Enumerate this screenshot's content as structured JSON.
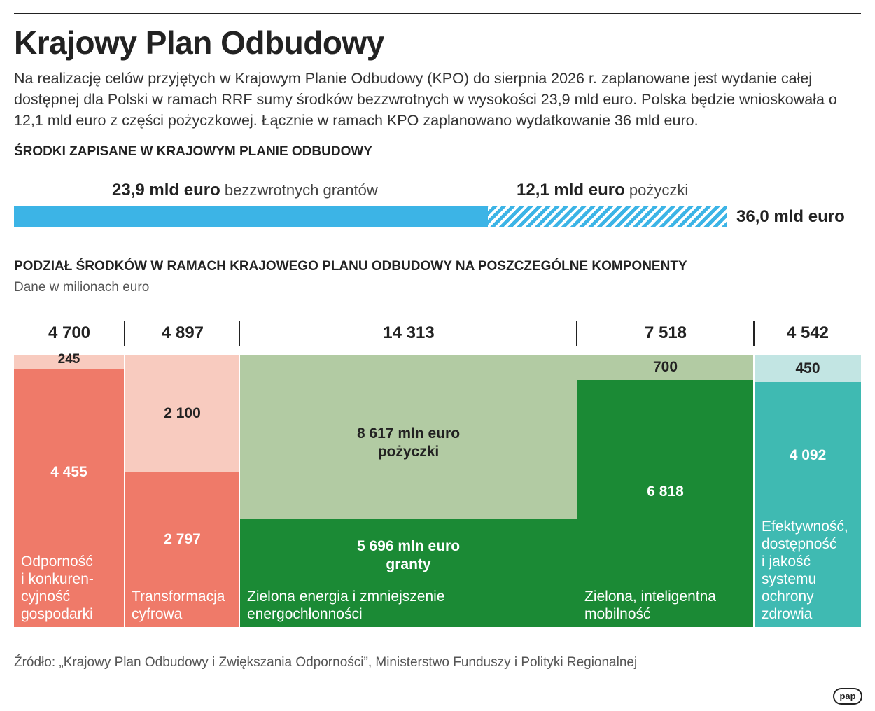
{
  "header": {
    "title": "Krajowy Plan Odbudowy",
    "intro": "Na realizację celów przyjętych w Krajowym Planie Odbudowy (KPO) do sierpnia 2026 r. zaplanowane jest wydanie całej dostępnej dla Polski w ramach RRF sumy środków bezzwrotnych w wysokości 23,9 mld euro. Polska będzie wnioskowała o 12,1 mld euro z części pożyczkowej. Łącznie w ramach KPO zaplanowano wydatkowanie 36 mld euro."
  },
  "funds": {
    "heading": "ŚRODKI ZAPISANE W KRAJOWYM PLANIE ODBUDOWY",
    "grants_value": "23,9 mld euro",
    "grants_text": "bezzwrotnych grantów",
    "loans_value": "12,1 mld euro",
    "loans_text": "pożyczki",
    "total": "36,0 mld euro"
  },
  "colors": {
    "grant_bar": "#3cb4e6",
    "c1_grant": "#ef7a69",
    "c1_loan": "#f8cbbf",
    "c2_grant": "#ef7a69",
    "c2_loan": "#f8cbbf",
    "c3_grant": "#1b8a35",
    "c3_loan": "#b2cba3",
    "c4_grant": "#1b8a35",
    "c4_loan": "#b2cba3",
    "c5_grant": "#3fbab2",
    "c5_loan": "#c2e5e3"
  },
  "chart_data": [
    {
      "type": "bar",
      "title": "ŚRODKI ZAPISANE W KRAJOWYM PLANIE ODBUDOWY",
      "unit": "mld euro",
      "orientation": "horizontal-stacked",
      "series": [
        {
          "name": "bezzwrotnych grantów",
          "values": [
            23.9
          ]
        },
        {
          "name": "pożyczki",
          "values": [
            12.1
          ]
        }
      ],
      "total": 36.0
    },
    {
      "type": "bar",
      "orientation": "stacked-width-proportional",
      "title": "PODZIAŁ ŚRODKÓW W RAMACH KRAJOWEGO PLANU ODBUDOWY NA POSZCZEGÓLNE KOMPONENTY",
      "subtitle": "Dane w milionach euro",
      "categories": [
        "Odporność i konkurencyjność gospodarki",
        "Transformacja cyfrowa",
        "Zielona energia i zmniejszenie energochłonności",
        "Zielona, inteligentna mobilność",
        "Efektywność, dostępność i jakość systemu ochrony zdrowia"
      ],
      "totals": [
        4700,
        4897,
        14313,
        7518,
        4542
      ],
      "totals_text": [
        "4 700",
        "4 897",
        "14 313",
        "7 518",
        "4 542"
      ],
      "series": [
        {
          "name": "granty",
          "values": [
            4455,
            2797,
            5696,
            6818,
            4092
          ],
          "labels": [
            "4 455",
            "2 797",
            "5 696 mln euro granty",
            "6 818",
            "4 092"
          ]
        },
        {
          "name": "pożyczki",
          "values": [
            245,
            2100,
            8617,
            700,
            450
          ],
          "labels": [
            "245",
            "2 100",
            "8 617 mln euro pożyczki",
            "700",
            "450"
          ]
        }
      ],
      "inline_labels": {
        "loans_l1": "8 617 mln euro",
        "loans_l2": "pożyczki",
        "grants_l1": "5 696 mln euro",
        "grants_l2": "granty"
      },
      "component_labels": [
        [
          "Odporność",
          "i konkuren-",
          "cyjność",
          "gospodarki"
        ],
        [
          "Transformacja",
          "cyfrowa"
        ],
        [
          "Zielona energia i zmniejszenie",
          "energochłonności"
        ],
        [
          "Zielona, inteligentna",
          "mobilność"
        ],
        [
          "Efektywność,",
          "dostępność",
          "i jakość",
          "systemu",
          "ochrony",
          "zdrowia"
        ]
      ]
    }
  ],
  "components": {
    "heading": "PODZIAŁ ŚRODKÓW W RAMACH KRAJOWEGO PLANU ODBUDOWY NA POSZCZEGÓLNE KOMPONENTY",
    "note": "Dane w milionach euro"
  },
  "footer": {
    "source": "Źródło: „Krajowy Plan Odbudowy i Zwiększania Odporności”, Ministerstwo Funduszy i Polityki Regionalnej",
    "logo": "pap"
  }
}
